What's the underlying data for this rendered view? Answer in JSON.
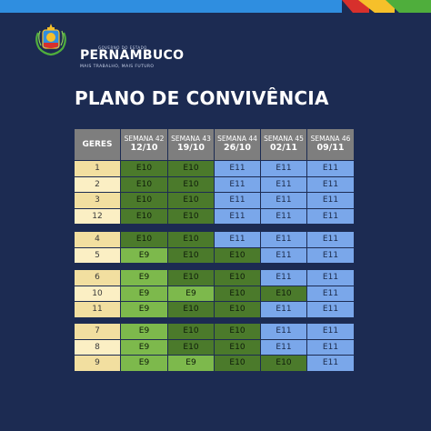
{
  "brand": {
    "gov_line": "GOVERNO DO ESTADO",
    "name": "PERNAMBUCO",
    "slogan": "MAIS TRABALHO, MAIS FUTURO",
    "colors": {
      "blue": "#2f8ee0",
      "red": "#d7302c",
      "yellow": "#f6c02a",
      "green": "#4fae3c"
    }
  },
  "title": "PLANO DE CONVIVÊNCIA",
  "table": {
    "first_header": "GERES",
    "weeks": [
      {
        "label": "SEMANA 42",
        "date": "12/10"
      },
      {
        "label": "SEMANA 43",
        "date": "19/10"
      },
      {
        "label": "SEMANA 44",
        "date": "26/10"
      },
      {
        "label": "SEMANA 45",
        "date": "02/11"
      },
      {
        "label": "SEMANA 46",
        "date": "09/11"
      }
    ],
    "groups": [
      [
        {
          "geres": "1",
          "stages": [
            "E10",
            "E10",
            "E11",
            "E11",
            "E11"
          ]
        },
        {
          "geres": "2",
          "stages": [
            "E10",
            "E10",
            "E11",
            "E11",
            "E11"
          ]
        },
        {
          "geres": "3",
          "stages": [
            "E10",
            "E10",
            "E11",
            "E11",
            "E11"
          ]
        },
        {
          "geres": "12",
          "stages": [
            "E10",
            "E10",
            "E11",
            "E11",
            "E11"
          ]
        }
      ],
      [
        {
          "geres": "4",
          "stages": [
            "E10",
            "E10",
            "E11",
            "E11",
            "E11"
          ]
        },
        {
          "geres": "5",
          "stages": [
            "E9",
            "E10",
            "E10",
            "E11",
            "E11"
          ]
        }
      ],
      [
        {
          "geres": "6",
          "stages": [
            "E9",
            "E10",
            "E10",
            "E11",
            "E11"
          ]
        },
        {
          "geres": "10",
          "stages": [
            "E9",
            "E9",
            "E10",
            "E10",
            "E11"
          ]
        },
        {
          "geres": "11",
          "stages": [
            "E9",
            "E10",
            "E10",
            "E11",
            "E11"
          ]
        }
      ],
      [
        {
          "geres": "7",
          "stages": [
            "E9",
            "E10",
            "E10",
            "E11",
            "E11"
          ]
        },
        {
          "geres": "8",
          "stages": [
            "E9",
            "E10",
            "E10",
            "E11",
            "E11"
          ]
        },
        {
          "geres": "9",
          "stages": [
            "E9",
            "E9",
            "E10",
            "E10",
            "E11"
          ]
        }
      ]
    ],
    "stage_colors": {
      "E9": "#7db94c",
      "E10": "#4b7a2b",
      "E11": "#7aa7ea"
    }
  }
}
